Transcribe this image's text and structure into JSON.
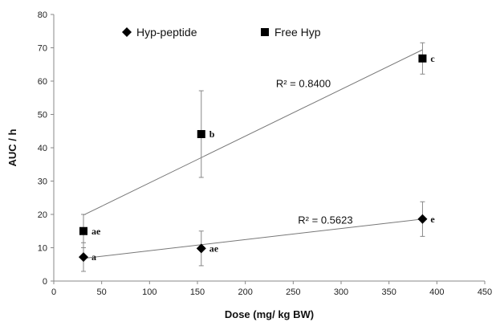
{
  "chart_data": {
    "type": "scatter",
    "xlabel": "Dose (mg/ kg BW)",
    "ylabel": "AUC / h",
    "xlim": [
      0,
      450
    ],
    "ylim": [
      0,
      80
    ],
    "xticks": [
      "0",
      "50",
      "100",
      "150",
      "200",
      "250",
      "300",
      "350",
      "400",
      "450"
    ],
    "yticks": [
      "0",
      "10",
      "20",
      "30",
      "40",
      "50",
      "60",
      "70",
      "80"
    ],
    "grid": false,
    "legend": {
      "placement": "top-left"
    },
    "series": [
      {
        "name": "Hyp-peptide",
        "marker": "diamond",
        "color": "#000000",
        "points": [
          {
            "x": 31,
            "y": 7.2,
            "err": 4.3,
            "label": "a"
          },
          {
            "x": 154,
            "y": 9.8,
            "err": 5.2,
            "label": "ae"
          },
          {
            "x": 385,
            "y": 18.6,
            "err": 5.2,
            "label": "e"
          }
        ],
        "trendline": {
          "x": [
            31,
            385
          ],
          "y": [
            6.8,
            18.6
          ]
        },
        "r2_label": "R² = 0.5623"
      },
      {
        "name": "Free Hyp",
        "marker": "square",
        "color": "#000000",
        "points": [
          {
            "x": 31,
            "y": 15.0,
            "err": 5.0,
            "label": "ae"
          },
          {
            "x": 154,
            "y": 44.1,
            "err": 13.0,
            "label": "b"
          },
          {
            "x": 385,
            "y": 66.8,
            "err": 4.7,
            "label": "c"
          }
        ],
        "trendline": {
          "x": [
            31,
            385
          ],
          "y": [
            19.8,
            69.4
          ]
        },
        "r2_label": "R² = 0.8400"
      }
    ]
  }
}
